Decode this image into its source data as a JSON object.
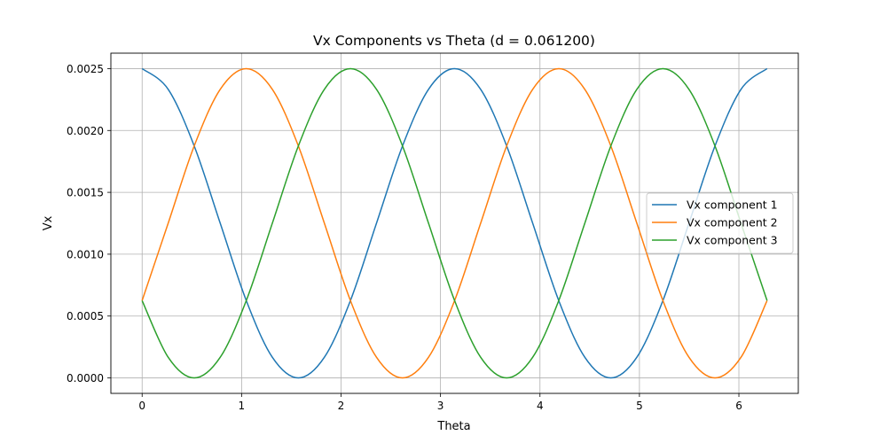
{
  "chart_data": {
    "type": "line",
    "title": "Vx Components vs Theta (d = 0.061200)",
    "xlabel": "Theta",
    "ylabel": "Vx",
    "xlim": [
      -0.3142,
      6.5973
    ],
    "ylim": [
      -0.000125,
      0.002625
    ],
    "xticks": [
      0,
      1,
      2,
      3,
      4,
      5,
      6
    ],
    "yticks": [
      0.0,
      0.0005,
      0.001,
      0.0015,
      0.002,
      0.0025
    ],
    "xtick_labels": [
      "0",
      "1",
      "2",
      "3",
      "4",
      "5",
      "6"
    ],
    "ytick_labels": [
      "0.0000",
      "0.0005",
      "0.0010",
      "0.0015",
      "0.0020",
      "0.0025"
    ],
    "grid": true,
    "legend_position": "center-right",
    "x": [
      0.0,
      0.2618,
      0.5236,
      0.7854,
      1.0472,
      1.309,
      1.5708,
      1.8326,
      2.0944,
      2.3562,
      2.618,
      2.8798,
      3.1416,
      3.4034,
      3.6652,
      3.927,
      4.1888,
      4.4506,
      4.7124,
      4.9742,
      5.236,
      5.4978,
      5.7596,
      6.0214,
      6.2832
    ],
    "series": [
      {
        "name": "Vx component 1",
        "color": "#1f77b4",
        "values": [
          0.0025,
          0.002333,
          0.001875,
          0.00125,
          0.000625,
          0.000167,
          0.0,
          0.000167,
          0.000625,
          0.00125,
          0.001875,
          0.002333,
          0.0025,
          0.002333,
          0.001875,
          0.00125,
          0.000625,
          0.000167,
          0.0,
          0.000167,
          0.000625,
          0.00125,
          0.001875,
          0.002333,
          0.0025
        ]
      },
      {
        "name": "Vx component 2",
        "color": "#ff7f0e",
        "values": [
          0.000625,
          0.00125,
          0.001875,
          0.002333,
          0.0025,
          0.002333,
          0.001875,
          0.00125,
          0.000625,
          0.000167,
          0.0,
          0.000167,
          0.000625,
          0.00125,
          0.001875,
          0.002333,
          0.0025,
          0.002333,
          0.001875,
          0.00125,
          0.000625,
          0.000167,
          0.0,
          0.000167,
          0.000625
        ]
      },
      {
        "name": "Vx component 3",
        "color": "#2ca02c",
        "values": [
          0.000625,
          0.000167,
          0.0,
          0.000167,
          0.000625,
          0.00125,
          0.001875,
          0.002333,
          0.0025,
          0.002333,
          0.001875,
          0.00125,
          0.000625,
          0.000167,
          0.0,
          0.000167,
          0.000625,
          0.00125,
          0.001875,
          0.002333,
          0.0025,
          0.002333,
          0.001875,
          0.00125,
          0.000625
        ]
      }
    ]
  }
}
